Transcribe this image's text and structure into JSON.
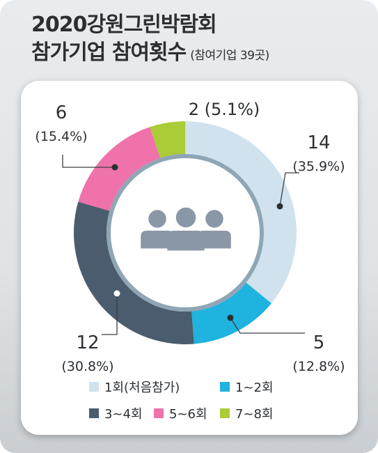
{
  "title_line1": "2020강원그린박람회",
  "title_line2": "참가기업 참여횟수",
  "title_note": "(참여기업 39곳)",
  "chart_data": {
    "type": "pie",
    "style": "donut",
    "total": 39,
    "unit": "곳",
    "categories": [
      "1회(처음참가)",
      "1~2회",
      "3~4회",
      "5~6회",
      "7~8회"
    ],
    "values": [
      14,
      5,
      12,
      6,
      2
    ],
    "percent_labels": [
      "(35.9%)",
      "(12.8%)",
      "(30.8%)",
      "(15.4%)",
      "(5.1%)"
    ],
    "colors": [
      "#cfe2ee",
      "#1fb3df",
      "#4a5c6d",
      "#ef72aa",
      "#a9cc37"
    ],
    "start": "top (12 o'clock), clockwise",
    "legend_placement": "bottom",
    "center_icon": "group-of-people-icon"
  }
}
